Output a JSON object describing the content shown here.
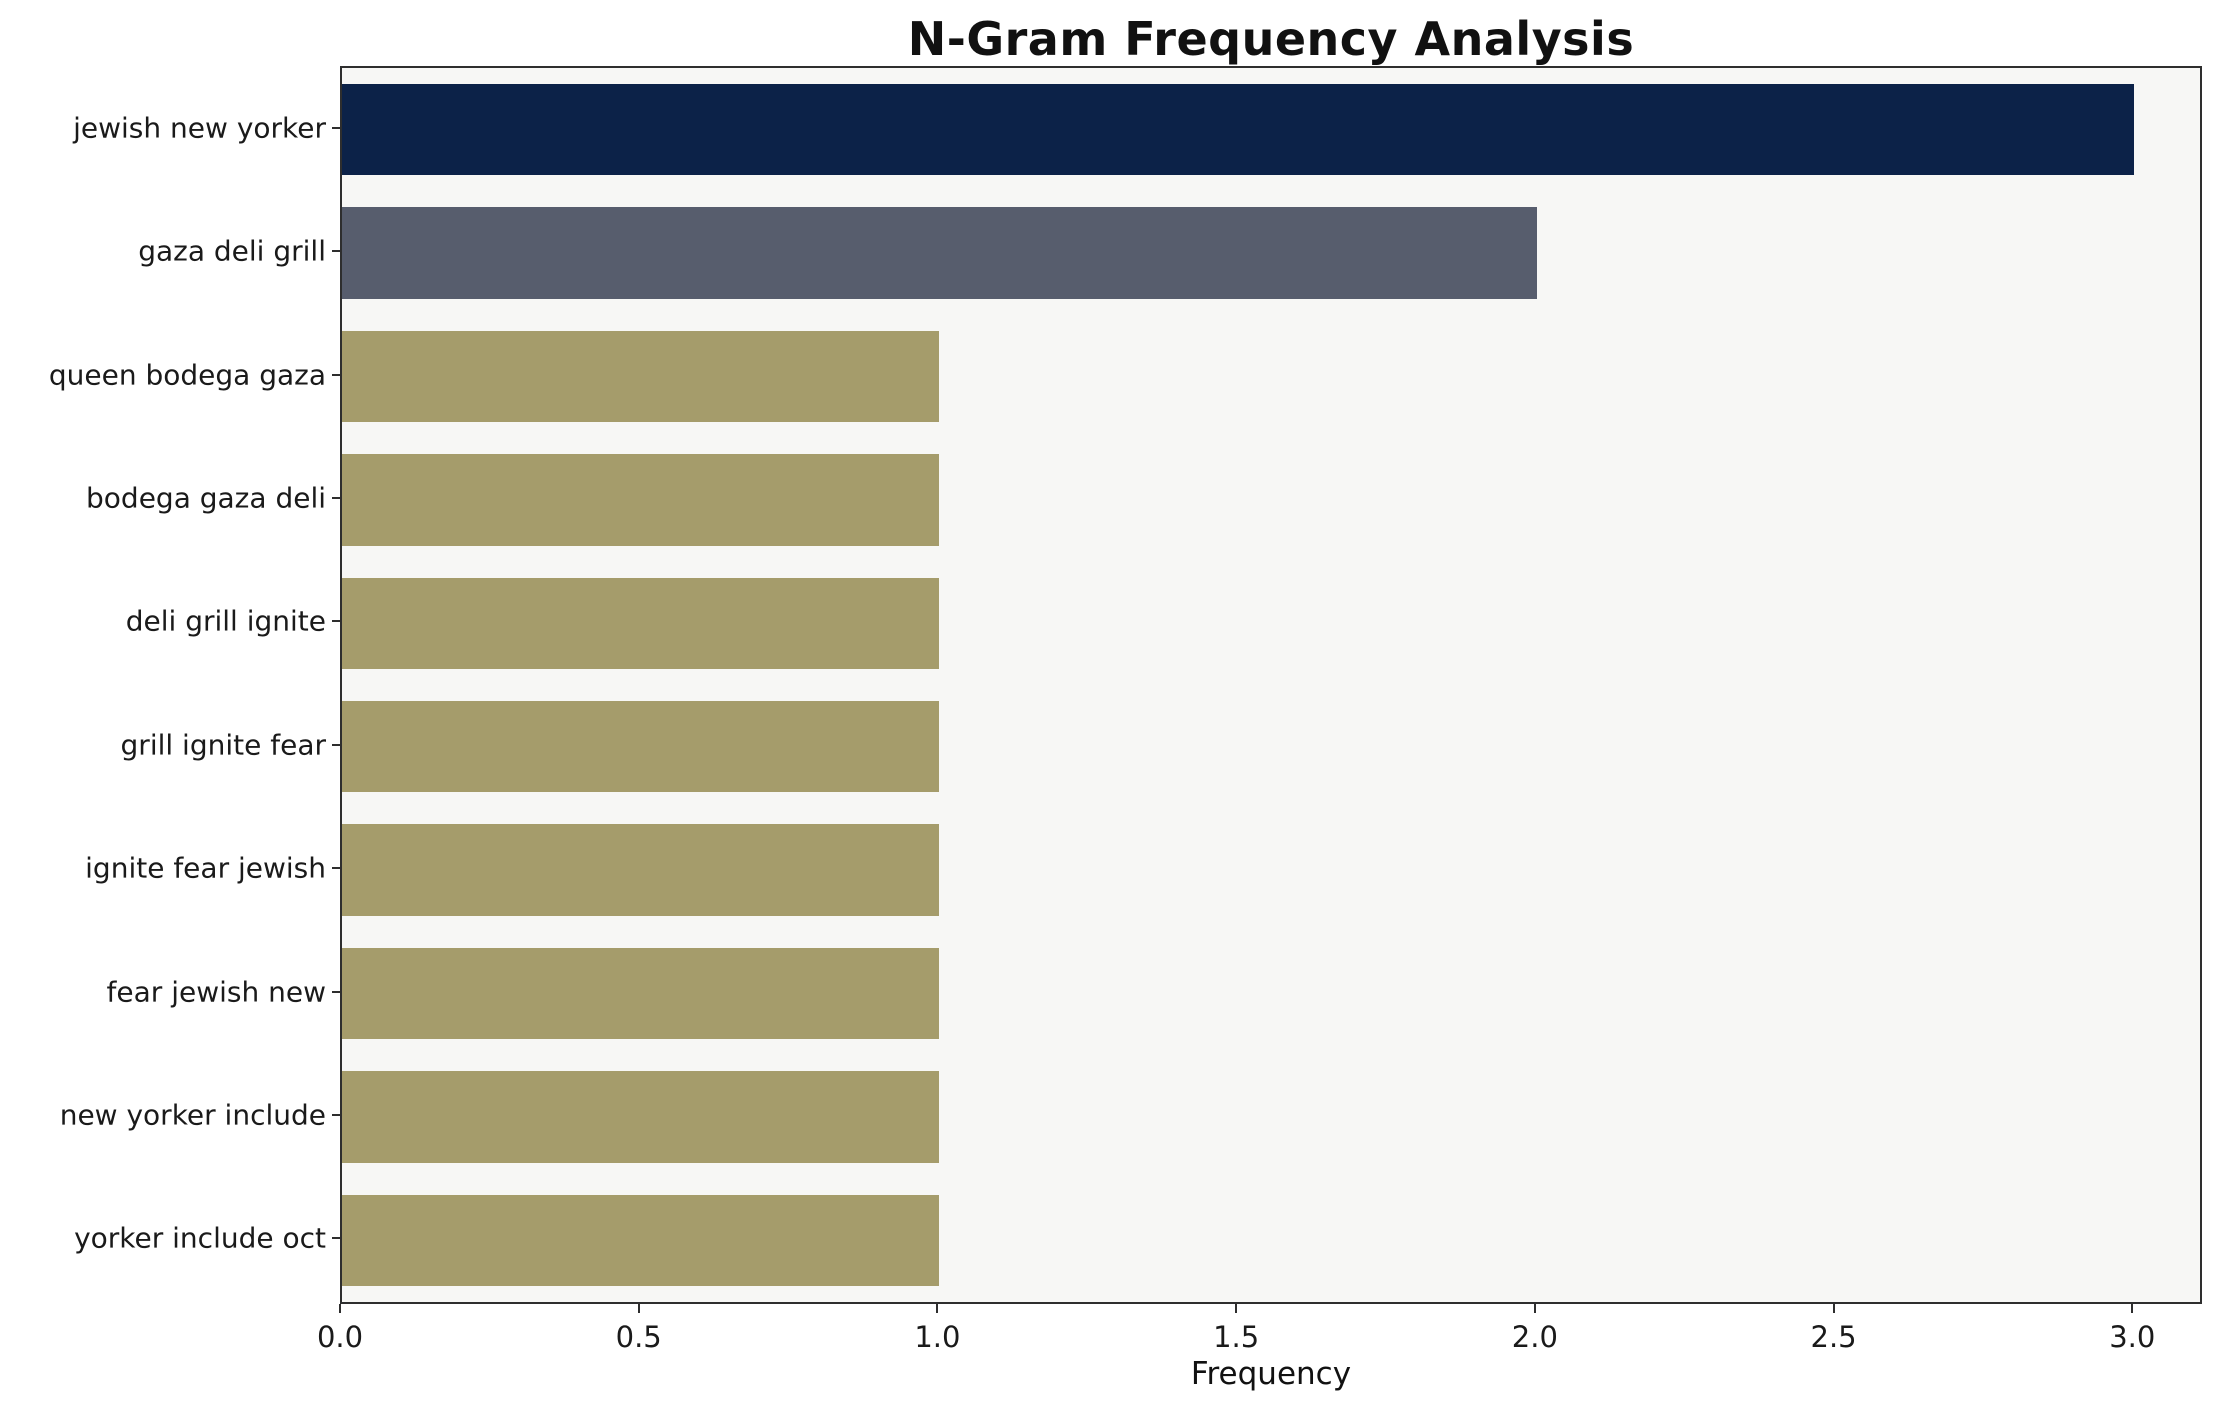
{
  "chart_data": {
    "type": "bar",
    "orientation": "horizontal",
    "title": "N-Gram Frequency Analysis",
    "xlabel": "Frequency",
    "ylabel": "",
    "categories": [
      "jewish new yorker",
      "gaza deli grill",
      "queen bodega gaza",
      "bodega gaza deli",
      "deli grill ignite",
      "grill ignite fear",
      "ignite fear jewish",
      "fear jewish new",
      "new yorker include",
      "yorker include oct"
    ],
    "values": [
      3,
      2,
      1,
      1,
      1,
      1,
      1,
      1,
      1,
      1
    ],
    "bar_colors": [
      "#0c2248",
      "#575d6d",
      "#a59c6b",
      "#a59c6b",
      "#a59c6b",
      "#a59c6b",
      "#a59c6b",
      "#a59c6b",
      "#a59c6b",
      "#a59c6b"
    ],
    "xlim": [
      0,
      3.11
    ],
    "xticks": [
      0.0,
      0.5,
      1.0,
      1.5,
      2.0,
      2.5,
      3.0
    ],
    "xtick_labels": [
      "0.0",
      "0.5",
      "1.0",
      "1.5",
      "2.0",
      "2.5",
      "3.0"
    ],
    "legend": null,
    "grid": false,
    "plot_background": "#f7f7f5",
    "figure_background": "#ffffff",
    "spine_color": "#2e2e2e"
  }
}
